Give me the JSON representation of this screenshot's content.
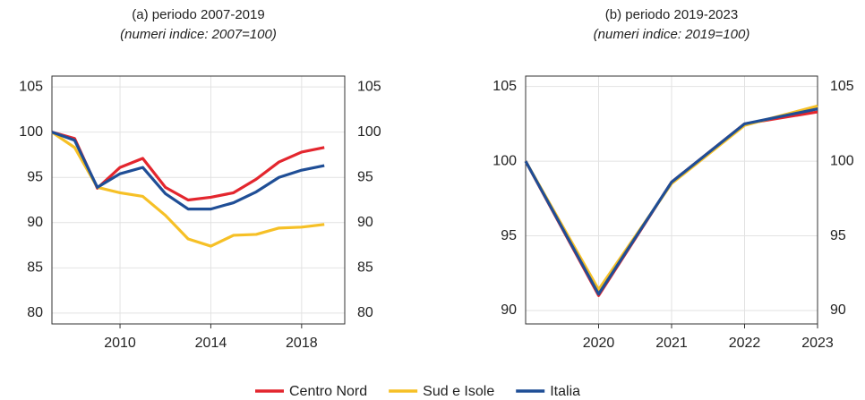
{
  "chart_data": [
    {
      "type": "line",
      "title": "(a) periodo 2007-2019",
      "subtitle": "(numeri indice: 2007=100)",
      "x": [
        2007,
        2008,
        2009,
        2010,
        2011,
        2012,
        2013,
        2014,
        2015,
        2016,
        2017,
        2018,
        2019
      ],
      "series": [
        {
          "name": "Centro Nord",
          "color": "#e3262e",
          "values": [
            100,
            99.3,
            93.8,
            96.1,
            97.1,
            93.9,
            92.5,
            92.8,
            93.3,
            94.8,
            96.7,
            97.8,
            98.3
          ]
        },
        {
          "name": "Sud e Isole",
          "color": "#f6c026",
          "values": [
            100,
            98.3,
            93.9,
            93.3,
            92.9,
            90.8,
            88.2,
            87.4,
            88.6,
            88.7,
            89.4,
            89.5,
            89.8
          ]
        },
        {
          "name": "Italia",
          "color": "#1f4e96",
          "values": [
            100,
            99.1,
            93.9,
            95.4,
            96.1,
            93.2,
            91.5,
            91.5,
            92.2,
            93.4,
            95,
            95.8,
            96.3
          ]
        }
      ],
      "xlim": [
        2007,
        2019.9
      ],
      "xticks": [
        2010,
        2014,
        2018
      ],
      "ylim": [
        78.8,
        106.2
      ],
      "yticks": [
        80,
        85,
        90,
        95,
        100,
        105
      ],
      "grid": true
    },
    {
      "type": "line",
      "title": "(b) periodo 2019-2023",
      "subtitle": "(numeri indice: 2019=100)",
      "x": [
        2019,
        2020,
        2021,
        2022,
        2023
      ],
      "series": [
        {
          "color": "#e3262e",
          "values": [
            100,
            91,
            98.6,
            102.5,
            103.3
          ]
        },
        {
          "color": "#f6c026",
          "values": [
            100,
            91.4,
            98.5,
            102.4,
            103.7
          ]
        },
        {
          "color": "#1f4e96",
          "values": [
            100,
            91.1,
            98.6,
            102.5,
            103.5
          ]
        }
      ],
      "xlim": [
        2019,
        2023
      ],
      "xticks": [
        2020,
        2021,
        2022,
        2023
      ],
      "ylim": [
        89.1,
        105.7
      ],
      "yticks": [
        90,
        95,
        100,
        105
      ],
      "grid": true
    }
  ]
}
